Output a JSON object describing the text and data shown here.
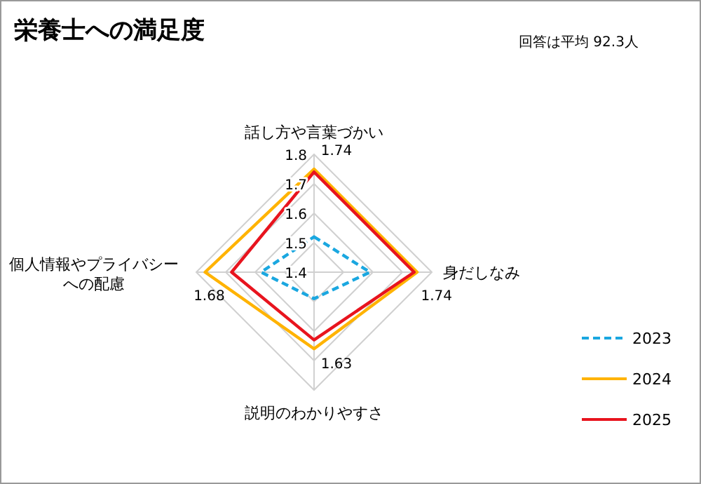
{
  "chart_data": {
    "type": "radar",
    "title": "栄養士への満足度",
    "annotations": [
      "回答は平均 92.3人"
    ],
    "categories": [
      "話し方や言葉づかい",
      "身だしなみ",
      "説明のわかりやすさ",
      "個人情報やプライバシーへの配慮"
    ],
    "ylim": [
      1.4,
      1.8
    ],
    "yticks": [
      1.4,
      1.5,
      1.6,
      1.7,
      1.8
    ],
    "grid": true,
    "legend": "right",
    "series": [
      {
        "name": "2023",
        "color": "#1aa7e0",
        "line_style": "dashed",
        "values": [
          1.52,
          1.59,
          1.49,
          1.58
        ]
      },
      {
        "name": "2024",
        "color": "#ffb300",
        "line_style": "solid",
        "values": [
          1.75,
          1.75,
          1.66,
          1.77
        ]
      },
      {
        "name": "2025",
        "color": "#e8141e",
        "line_style": "solid",
        "values": [
          1.74,
          1.74,
          1.63,
          1.68
        ],
        "value_labels": [
          "1.74",
          "1.74",
          "1.63",
          "1.68"
        ]
      }
    ]
  }
}
